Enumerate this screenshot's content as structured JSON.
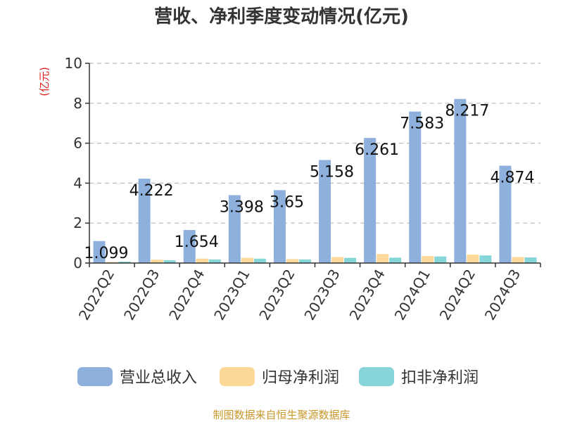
{
  "chart_data": {
    "type": "bar",
    "title": "营收、净利季度变动情况(亿元)",
    "ylabel": "(亿元)",
    "ylim": [
      0,
      10
    ],
    "yticks": [
      0,
      2,
      4,
      6,
      8,
      10
    ],
    "grid": true,
    "legend_position": "bottom",
    "categories": [
      "2022Q2",
      "2022Q3",
      "2022Q4",
      "2023Q1",
      "2023Q2",
      "2023Q3",
      "2023Q4",
      "2024Q1",
      "2024Q2",
      "2024Q3"
    ],
    "series": [
      {
        "name": "营业总收入",
        "color": "#8eb0dc",
        "values": [
          1.099,
          4.222,
          1.654,
          3.398,
          3.65,
          5.158,
          6.261,
          7.583,
          8.217,
          4.874
        ],
        "data_labels": [
          "1.099",
          "4.222",
          "1.654",
          "3.398",
          "3.65",
          "5.158",
          "6.261",
          "7.583",
          "8.217",
          "4.874"
        ]
      },
      {
        "name": "归母净利润",
        "color": "#fcd899",
        "values": [
          0.05,
          0.17,
          0.22,
          0.26,
          0.2,
          0.3,
          0.45,
          0.35,
          0.42,
          0.3
        ]
      },
      {
        "name": "扣非净利润",
        "color": "#86d5d8",
        "values": [
          0.07,
          0.14,
          0.18,
          0.22,
          0.18,
          0.26,
          0.27,
          0.33,
          0.38,
          0.28
        ]
      }
    ],
    "source": "制图数据来自恒生聚源数据库"
  },
  "colors": {
    "axis": "#333333",
    "grid": "#bbbbbb",
    "ylabel": "#e0201b",
    "source": "#c8962a",
    "text": "#333333"
  }
}
